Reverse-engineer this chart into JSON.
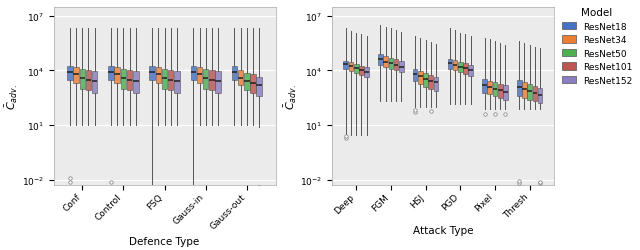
{
  "model_colors": {
    "ResNet18": "#4472C4",
    "ResNet34": "#ED7D31",
    "ResNet50": "#4CAF50",
    "ResNet101": "#BC5450",
    "ResNet152": "#8B7DC0"
  },
  "models": [
    "ResNet18",
    "ResNet34",
    "ResNet50",
    "ResNet101",
    "ResNet152"
  ],
  "defence_categories": [
    "Conf",
    "Control",
    "FSQ",
    "Gauss-in",
    "Gauss-out"
  ],
  "attack_categories": [
    "Deep",
    "FGM",
    "HSJ",
    "PGD",
    "Pixel",
    "Thresh"
  ],
  "ylabel": "$\\bar{C}_{adv.}$",
  "xlabel_left": "Defence Type",
  "xlabel_right": "Attack Type",
  "title_legend": "Model",
  "background_color": "#ebebeb",
  "defence_data": {
    "ResNet18": {
      "Conf": {
        "q1": 3000,
        "med": 8000,
        "q3": 18000,
        "lo_whisk": 10,
        "hi_whisk": 2000000,
        "fliers_lo": [
          0.008,
          0.012
        ],
        "fliers_hi": []
      },
      "Control": {
        "q1": 3000,
        "med": 8000,
        "q3": 18000,
        "lo_whisk": 10,
        "hi_whisk": 2000000,
        "fliers_lo": [
          0.008
        ],
        "fliers_hi": []
      },
      "FSQ": {
        "q1": 3000,
        "med": 8000,
        "q3": 18000,
        "lo_whisk": 0.005,
        "hi_whisk": 2000000,
        "fliers_lo": [],
        "fliers_hi": []
      },
      "Gauss-in": {
        "q1": 3000,
        "med": 8000,
        "q3": 18000,
        "lo_whisk": 0.005,
        "hi_whisk": 2000000,
        "fliers_lo": [],
        "fliers_hi": []
      },
      "Gauss-out": {
        "q1": 3000,
        "med": 8000,
        "q3": 18000,
        "lo_whisk": 10,
        "hi_whisk": 2000000,
        "fliers_lo": [],
        "fliers_hi": []
      }
    },
    "ResNet34": {
      "Conf": {
        "q1": 2000,
        "med": 6000,
        "q3": 15000,
        "lo_whisk": 10,
        "hi_whisk": 2000000,
        "fliers_lo": [],
        "fliers_hi": []
      },
      "Control": {
        "q1": 2000,
        "med": 6000,
        "q3": 15000,
        "lo_whisk": 10,
        "hi_whisk": 2000000,
        "fliers_lo": [],
        "fliers_hi": []
      },
      "FSQ": {
        "q1": 2000,
        "med": 6000,
        "q3": 15000,
        "lo_whisk": 10,
        "hi_whisk": 2000000,
        "fliers_lo": [],
        "fliers_hi": []
      },
      "Gauss-in": {
        "q1": 2000,
        "med": 6000,
        "q3": 15000,
        "lo_whisk": 10,
        "hi_whisk": 2000000,
        "fliers_lo": [],
        "fliers_hi": []
      },
      "Gauss-out": {
        "q1": 1500,
        "med": 4000,
        "q3": 10000,
        "lo_whisk": 10,
        "hi_whisk": 2000000,
        "fliers_lo": [],
        "fliers_hi": []
      }
    },
    "ResNet50": {
      "Conf": {
        "q1": 1000,
        "med": 4000,
        "q3": 12000,
        "lo_whisk": 10,
        "hi_whisk": 2000000,
        "fliers_lo": [],
        "fliers_hi": []
      },
      "Control": {
        "q1": 1000,
        "med": 4000,
        "q3": 12000,
        "lo_whisk": 10,
        "hi_whisk": 2000000,
        "fliers_lo": [],
        "fliers_hi": []
      },
      "FSQ": {
        "q1": 1000,
        "med": 4000,
        "q3": 12000,
        "lo_whisk": 10,
        "hi_whisk": 2000000,
        "fliers_lo": [],
        "fliers_hi": []
      },
      "Gauss-in": {
        "q1": 1000,
        "med": 4000,
        "q3": 12000,
        "lo_whisk": 10,
        "hi_whisk": 2000000,
        "fliers_lo": [],
        "fliers_hi": []
      },
      "Gauss-out": {
        "q1": 800,
        "med": 2500,
        "q3": 7000,
        "lo_whisk": 10,
        "hi_whisk": 2000000,
        "fliers_lo": [],
        "fliers_hi": []
      }
    },
    "ResNet101": {
      "Conf": {
        "q1": 800,
        "med": 3000,
        "q3": 10000,
        "lo_whisk": 10,
        "hi_whisk": 2000000,
        "fliers_lo": [],
        "fliers_hi": []
      },
      "Control": {
        "q1": 800,
        "med": 3000,
        "q3": 10000,
        "lo_whisk": 10,
        "hi_whisk": 2000000,
        "fliers_lo": [],
        "fliers_hi": []
      },
      "FSQ": {
        "q1": 800,
        "med": 3000,
        "q3": 10000,
        "lo_whisk": 10,
        "hi_whisk": 2000000,
        "fliers_lo": [],
        "fliers_hi": []
      },
      "Gauss-in": {
        "q1": 800,
        "med": 3000,
        "q3": 10000,
        "lo_whisk": 10,
        "hi_whisk": 2000000,
        "fliers_lo": [],
        "fliers_hi": []
      },
      "Gauss-out": {
        "q1": 600,
        "med": 2000,
        "q3": 6000,
        "lo_whisk": 10,
        "hi_whisk": 2000000,
        "fliers_lo": [],
        "fliers_hi": []
      }
    },
    "ResNet152": {
      "Conf": {
        "q1": 600,
        "med": 2500,
        "q3": 9000,
        "lo_whisk": 10,
        "hi_whisk": 2000000,
        "fliers_lo": [],
        "fliers_hi": []
      },
      "Control": {
        "q1": 600,
        "med": 2500,
        "q3": 9000,
        "lo_whisk": 10,
        "hi_whisk": 2000000,
        "fliers_lo": [],
        "fliers_hi": []
      },
      "FSQ": {
        "q1": 600,
        "med": 2500,
        "q3": 9000,
        "lo_whisk": 10,
        "hi_whisk": 2000000,
        "fliers_lo": [],
        "fliers_hi": []
      },
      "Gauss-in": {
        "q1": 600,
        "med": 2500,
        "q3": 9000,
        "lo_whisk": 10,
        "hi_whisk": 2000000,
        "fliers_lo": [],
        "fliers_hi": []
      },
      "Gauss-out": {
        "q1": 400,
        "med": 1500,
        "q3": 4500,
        "lo_whisk": 8,
        "hi_whisk": 2000000,
        "fliers_lo": [
          0.003,
          0.004
        ],
        "fliers_hi": []
      }
    }
  },
  "attack_data": {
    "ResNet18": {
      "Deep": {
        "q1": 12000,
        "med": 22000,
        "q3": 35000,
        "lo_whisk": 3,
        "hi_whisk": 2000000,
        "fliers_lo": [
          2,
          2.5
        ],
        "fliers_hi": []
      },
      "FGM": {
        "q1": 20000,
        "med": 40000,
        "q3": 80000,
        "lo_whisk": 200,
        "hi_whisk": 3000000,
        "fliers_lo": [],
        "fliers_hi": []
      },
      "HSJ": {
        "q1": 2500,
        "med": 6000,
        "q3": 12000,
        "lo_whisk": 100,
        "hi_whisk": 800000,
        "fliers_lo": [
          50,
          70
        ],
        "fliers_hi": []
      },
      "PGD": {
        "q1": 12000,
        "med": 25000,
        "q3": 45000,
        "lo_whisk": 150,
        "hi_whisk": 2000000,
        "fliers_lo": [],
        "fliers_hi": []
      },
      "Pixel": {
        "q1": 600,
        "med": 1500,
        "q3": 3500,
        "lo_whisk": 80,
        "hi_whisk": 600000,
        "fliers_lo": [
          40
        ],
        "fliers_hi": []
      },
      "Thresh": {
        "q1": 400,
        "med": 1200,
        "q3": 3000,
        "lo_whisk": 80,
        "hi_whisk": 400000,
        "fliers_lo": [],
        "fliers_hi": [
          0.007,
          0.009
        ]
      }
    },
    "ResNet34": {
      "Deep": {
        "q1": 9000,
        "med": 17000,
        "q3": 28000,
        "lo_whisk": 3,
        "hi_whisk": 1500000,
        "fliers_lo": [],
        "fliers_hi": []
      },
      "FGM": {
        "q1": 15000,
        "med": 30000,
        "q3": 60000,
        "lo_whisk": 200,
        "hi_whisk": 2500000,
        "fliers_lo": [],
        "fliers_hi": []
      },
      "HSJ": {
        "q1": 1800,
        "med": 5000,
        "q3": 9000,
        "lo_whisk": 100,
        "hi_whisk": 600000,
        "fliers_lo": [],
        "fliers_hi": []
      },
      "PGD": {
        "q1": 10000,
        "med": 20000,
        "q3": 38000,
        "lo_whisk": 150,
        "hi_whisk": 1600000,
        "fliers_lo": [],
        "fliers_hi": []
      },
      "Pixel": {
        "q1": 500,
        "med": 1200,
        "q3": 2800,
        "lo_whisk": 80,
        "hi_whisk": 500000,
        "fliers_lo": [],
        "fliers_hi": []
      },
      "Thresh": {
        "q1": 300,
        "med": 900,
        "q3": 2200,
        "lo_whisk": 80,
        "hi_whisk": 300000,
        "fliers_lo": [],
        "fliers_hi": []
      }
    },
    "ResNet50": {
      "Deep": {
        "q1": 7000,
        "med": 13000,
        "q3": 22000,
        "lo_whisk": 3,
        "hi_whisk": 1200000,
        "fliers_lo": [],
        "fliers_hi": []
      },
      "FGM": {
        "q1": 12000,
        "med": 24000,
        "q3": 48000,
        "lo_whisk": 200,
        "hi_whisk": 2000000,
        "fliers_lo": [],
        "fliers_hi": []
      },
      "HSJ": {
        "q1": 1200,
        "med": 3500,
        "q3": 7000,
        "lo_whisk": 100,
        "hi_whisk": 450000,
        "fliers_lo": [],
        "fliers_hi": []
      },
      "PGD": {
        "q1": 8000,
        "med": 16000,
        "q3": 30000,
        "lo_whisk": 150,
        "hi_whisk": 1200000,
        "fliers_lo": [],
        "fliers_hi": []
      },
      "Pixel": {
        "q1": 400,
        "med": 1000,
        "q3": 2300,
        "lo_whisk": 80,
        "hi_whisk": 400000,
        "fliers_lo": [
          40
        ],
        "fliers_hi": []
      },
      "Thresh": {
        "q1": 250,
        "med": 700,
        "q3": 1800,
        "lo_whisk": 80,
        "hi_whisk": 250000,
        "fliers_lo": [],
        "fliers_hi": []
      }
    },
    "ResNet101": {
      "Deep": {
        "q1": 5500,
        "med": 10000,
        "q3": 18000,
        "lo_whisk": 3,
        "hi_whisk": 1000000,
        "fliers_lo": [],
        "fliers_hi": []
      },
      "FGM": {
        "q1": 10000,
        "med": 20000,
        "q3": 40000,
        "lo_whisk": 200,
        "hi_whisk": 1600000,
        "fliers_lo": [],
        "fliers_hi": []
      },
      "HSJ": {
        "q1": 900,
        "med": 2800,
        "q3": 5500,
        "lo_whisk": 100,
        "hi_whisk": 350000,
        "fliers_lo": [
          60
        ],
        "fliers_hi": []
      },
      "PGD": {
        "q1": 6500,
        "med": 13000,
        "q3": 25000,
        "lo_whisk": 150,
        "hi_whisk": 1000000,
        "fliers_lo": [],
        "fliers_hi": []
      },
      "Pixel": {
        "q1": 300,
        "med": 800,
        "q3": 1900,
        "lo_whisk": 80,
        "hi_whisk": 320000,
        "fliers_lo": [],
        "fliers_hi": []
      },
      "Thresh": {
        "q1": 200,
        "med": 550,
        "q3": 1400,
        "lo_whisk": 80,
        "hi_whisk": 200000,
        "fliers_lo": [],
        "fliers_hi": []
      }
    },
    "ResNet152": {
      "Deep": {
        "q1": 4500,
        "med": 8000,
        "q3": 15000,
        "lo_whisk": 3,
        "hi_whisk": 800000,
        "fliers_lo": [],
        "fliers_hi": []
      },
      "FGM": {
        "q1": 8000,
        "med": 16000,
        "q3": 32000,
        "lo_whisk": 200,
        "hi_whisk": 1300000,
        "fliers_lo": [],
        "fliers_hi": []
      },
      "HSJ": {
        "q1": 700,
        "med": 2200,
        "q3": 4500,
        "lo_whisk": 100,
        "hi_whisk": 280000,
        "fliers_lo": [],
        "fliers_hi": []
      },
      "PGD": {
        "q1": 5000,
        "med": 11000,
        "q3": 20000,
        "lo_whisk": 150,
        "hi_whisk": 800000,
        "fliers_lo": [],
        "fliers_hi": []
      },
      "Pixel": {
        "q1": 250,
        "med": 650,
        "q3": 1600,
        "lo_whisk": 80,
        "hi_whisk": 260000,
        "fliers_lo": [
          40
        ],
        "fliers_hi": []
      },
      "Thresh": {
        "q1": 160,
        "med": 450,
        "q3": 1100,
        "lo_whisk": 80,
        "hi_whisk": 160000,
        "fliers_lo": [],
        "fliers_hi": [
          0.007,
          0.008
        ]
      }
    }
  }
}
